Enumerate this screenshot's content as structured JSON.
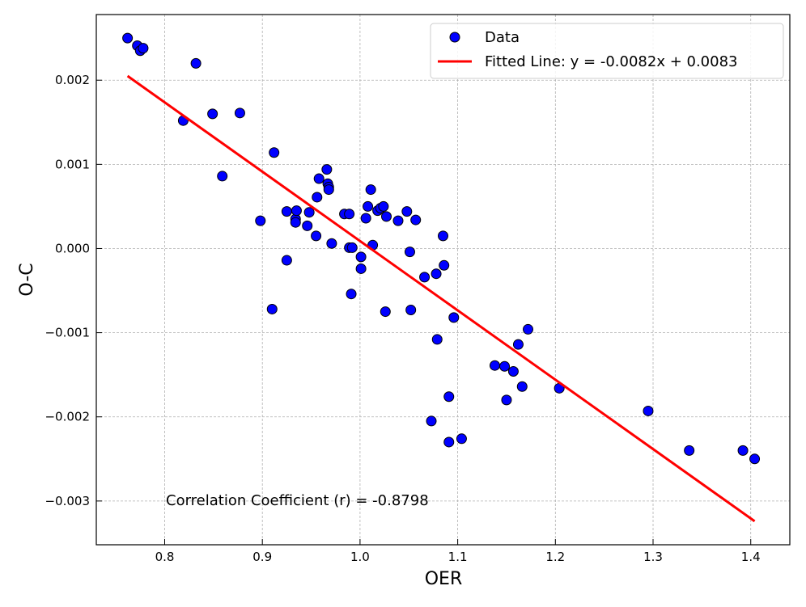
{
  "chart_data": {
    "type": "scatter",
    "title": "",
    "xlabel": "OER",
    "ylabel": "O-C",
    "xlim": [
      0.73,
      1.44
    ],
    "ylim": [
      -0.00352,
      0.00278
    ],
    "xticks": [
      0.8,
      0.9,
      1.0,
      1.1,
      1.2,
      1.3,
      1.4
    ],
    "xtick_labels": [
      "0.8",
      "0.9",
      "1.0",
      "1.1",
      "1.2",
      "1.3",
      "1.4"
    ],
    "yticks": [
      0.002,
      0.001,
      0.0,
      -0.001,
      -0.002,
      -0.003
    ],
    "ytick_labels": [
      "0.002",
      "0.001",
      "0.000",
      "−0.001",
      "−0.002",
      "−0.003"
    ],
    "grid": true,
    "legend_position": "top-right",
    "series": [
      {
        "name": "Data",
        "kind": "scatter",
        "color": "#0000ff",
        "edgecolor": "#000000",
        "points": [
          [
            0.762,
            0.0025
          ],
          [
            0.772,
            0.00241
          ],
          [
            0.775,
            0.00235
          ],
          [
            0.778,
            0.00238
          ],
          [
            0.832,
            0.0022
          ],
          [
            0.819,
            0.00152
          ],
          [
            0.849,
            0.0016
          ],
          [
            0.877,
            0.00161
          ],
          [
            0.859,
            0.00086
          ],
          [
            0.912,
            0.00114
          ],
          [
            0.898,
            0.00033
          ],
          [
            0.91,
            -0.00072
          ],
          [
            0.925,
            0.00044
          ],
          [
            0.925,
            -0.00014
          ],
          [
            0.934,
            0.00035
          ],
          [
            0.934,
            0.00031
          ],
          [
            0.935,
            0.00045
          ],
          [
            0.946,
            0.00027
          ],
          [
            0.948,
            0.00043
          ],
          [
            0.955,
            0.00015
          ],
          [
            0.956,
            0.00061
          ],
          [
            0.958,
            0.00083
          ],
          [
            0.966,
            0.00094
          ],
          [
            0.967,
            0.00077
          ],
          [
            0.968,
            0.00073
          ],
          [
            0.968,
            0.0007
          ],
          [
            0.971,
            6e-05
          ],
          [
            0.984,
            0.00041
          ],
          [
            0.989,
            0.00041
          ],
          [
            0.989,
            1e-05
          ],
          [
            0.992,
            1e-05
          ],
          [
            0.991,
            -0.00054
          ],
          [
            1.001,
            -0.0001
          ],
          [
            1.001,
            -0.00024
          ],
          [
            1.006,
            0.00036
          ],
          [
            1.008,
            0.0005
          ],
          [
            1.011,
            0.0007
          ],
          [
            1.013,
            4e-05
          ],
          [
            1.018,
            0.00045
          ],
          [
            1.021,
            0.00048
          ],
          [
            1.024,
            0.0005
          ],
          [
            1.027,
            0.00038
          ],
          [
            1.026,
            -0.00075
          ],
          [
            1.039,
            0.00033
          ],
          [
            1.048,
            0.00044
          ],
          [
            1.051,
            -4e-05
          ],
          [
            1.052,
            -0.00073
          ],
          [
            1.057,
            0.00034
          ],
          [
            1.066,
            -0.00034
          ],
          [
            1.073,
            -0.00205
          ],
          [
            1.078,
            -0.0003
          ],
          [
            1.079,
            -0.00108
          ],
          [
            1.085,
            0.00015
          ],
          [
            1.086,
            -0.0002
          ],
          [
            1.091,
            -0.00176
          ],
          [
            1.091,
            -0.0023
          ],
          [
            1.096,
            -0.00082
          ],
          [
            1.104,
            -0.00226
          ],
          [
            1.138,
            -0.00139
          ],
          [
            1.148,
            -0.0014
          ],
          [
            1.15,
            -0.0018
          ],
          [
            1.157,
            -0.00146
          ],
          [
            1.162,
            -0.00114
          ],
          [
            1.166,
            -0.00164
          ],
          [
            1.172,
            -0.00096
          ],
          [
            1.204,
            -0.00166
          ],
          [
            1.295,
            -0.00193
          ],
          [
            1.337,
            -0.0024
          ],
          [
            1.392,
            -0.0024
          ],
          [
            1.404,
            -0.0025
          ]
        ]
      },
      {
        "name": "Fitted Line: y = -0.0082x + 0.0083",
        "kind": "line",
        "color": "#ff0000",
        "x": [
          0.762,
          1.404
        ],
        "y": [
          0.00205,
          -0.00324
        ]
      }
    ],
    "annotation": "Correlation Coefficient (r) = -0.8798"
  }
}
